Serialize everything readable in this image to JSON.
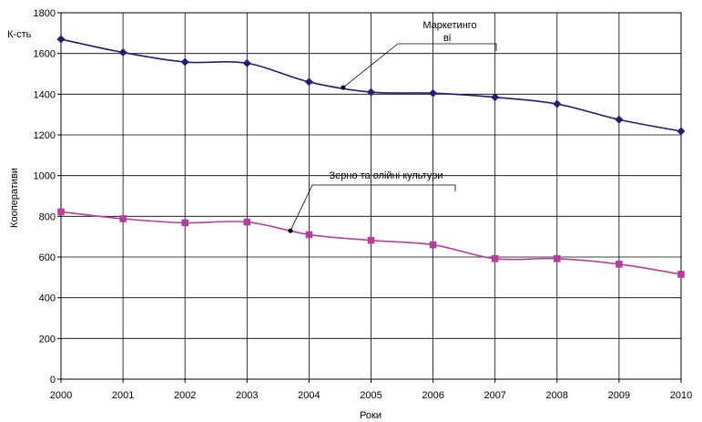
{
  "chart_data": {
    "type": "line",
    "xlabel": "Роки",
    "ylabel": "Кооперативи",
    "unit_label": "К-сть",
    "ylim": [
      0,
      1800
    ],
    "y_ticks": [
      0,
      200,
      400,
      600,
      800,
      1000,
      1200,
      1400,
      1600,
      1800
    ],
    "x": [
      2000,
      2001,
      2002,
      2003,
      2004,
      2005,
      2006,
      2007,
      2008,
      2009,
      2010
    ],
    "grid": true,
    "series": [
      {
        "name": "Маркетинго ві",
        "color": "#1f1f6e",
        "marker": "diamond",
        "values": [
          1670,
          1605,
          1558,
          1552,
          1460,
          1410,
          1405,
          1385,
          1352,
          1275,
          1218
        ]
      },
      {
        "name": "Зерно та олійні культури",
        "color": "#b0409a",
        "marker": "square",
        "values": [
          822,
          788,
          768,
          772,
          710,
          682,
          660,
          592,
          592,
          565,
          515
        ]
      }
    ],
    "annotations": [
      {
        "text_line1": "Маркетинго",
        "text_line2": "ві",
        "series": 0,
        "point_x": 2004.55
      },
      {
        "text": "Зерно та олійні культури",
        "series": 1,
        "point_x": 2003.7
      }
    ]
  }
}
